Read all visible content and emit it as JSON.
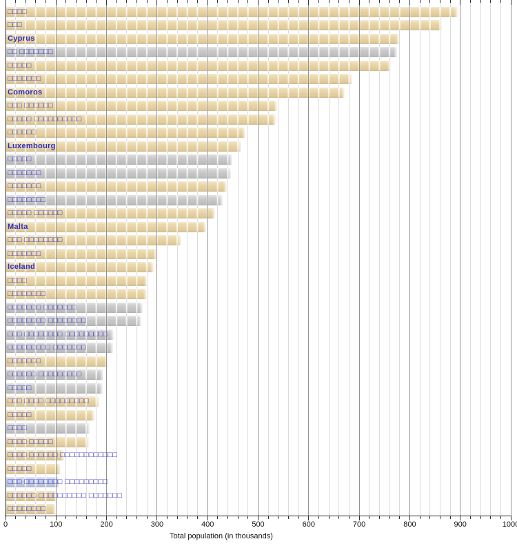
{
  "chart_data": {
    "type": "bar",
    "orientation": "horizontal",
    "xlabel": "Total population (in thousands)",
    "xlim": [
      0,
      1000
    ],
    "x_major_tick_labels": [
      "0",
      "100",
      "200",
      "300",
      "400",
      "500",
      "600",
      "700",
      "800",
      "900",
      "1000"
    ],
    "x_minor_tick_step": 20,
    "grid": "on",
    "palette": {
      "tan": "#e8d3a2",
      "gray": "#c7c7c7",
      "bluegray": "#c2cbe3",
      "label_blue": "#2e2ec0"
    },
    "rows": [
      {
        "label": "□□□□",
        "value": 894,
        "color": "tan"
      },
      {
        "label": "□□□",
        "value": 862,
        "color": "tan"
      },
      {
        "label": "Cyprus",
        "value": 777,
        "color": "tan"
      },
      {
        "label": "□□ □□□□□□□",
        "value": 773,
        "color": "gray"
      },
      {
        "label": "□□□□□",
        "value": 761,
        "color": "tan"
      },
      {
        "label": "□□□□□□□",
        "value": 685,
        "color": "tan"
      },
      {
        "label": "Comoros",
        "value": 670,
        "color": "tan"
      },
      {
        "label": "□□□ □□□□□□",
        "value": 536,
        "color": "tan"
      },
      {
        "label": "□□□□□ □□□□□□□□□□",
        "value": 533,
        "color": "tan"
      },
      {
        "label": "□□□□□□",
        "value": 473,
        "color": "tan"
      },
      {
        "label": "Luxembourg",
        "value": 465,
        "color": "tan"
      },
      {
        "label": "□□□□□",
        "value": 447,
        "color": "gray"
      },
      {
        "label": "□□□□□□□",
        "value": 445,
        "color": "gray"
      },
      {
        "label": "□□□□□□□",
        "value": 436,
        "color": "tan"
      },
      {
        "label": "□□□□□□□□",
        "value": 429,
        "color": "gray"
      },
      {
        "label": "□□□□□ □□□□□□",
        "value": 414,
        "color": "tan"
      },
      {
        "label": "Malta",
        "value": 395,
        "color": "tan"
      },
      {
        "label": "□□□ □□□□□□□□",
        "value": 346,
        "color": "tan"
      },
      {
        "label": "□□□□□□□",
        "value": 297,
        "color": "tan"
      },
      {
        "label": "Iceland",
        "value": 292,
        "color": "tan"
      },
      {
        "label": "□□□□",
        "value": 279,
        "color": "tan"
      },
      {
        "label": "□□□□□□□□",
        "value": 278,
        "color": "tan"
      },
      {
        "label": "□□□□□□□ □□□□□□□",
        "value": 270,
        "color": "gray"
      },
      {
        "label": "□□□□□□□□ □□□□□□□□",
        "value": 267,
        "color": "gray"
      },
      {
        "label": "□□□ □□□□□□□□ □□□□□□□□□",
        "value": 213,
        "color": "gray"
      },
      {
        "label": "□□□□□□□□□ □□□□□□□",
        "value": 212,
        "color": "gray"
      },
      {
        "label": "□□□□□□□",
        "value": 202,
        "color": "tan"
      },
      {
        "label": "□□□□□□ □□□□□□□□□",
        "value": 193,
        "color": "gray"
      },
      {
        "label": "□□□□□",
        "value": 191,
        "color": "gray"
      },
      {
        "label": "□□□ □□□□ □□□□□□□□□",
        "value": 184,
        "color": "tan"
      },
      {
        "label": "□□□□□",
        "value": 175,
        "color": "tan"
      },
      {
        "label": "□□□□",
        "value": 165,
        "color": "gray"
      },
      {
        "label": "□□□□ □□□□□",
        "value": 164,
        "color": "tan"
      },
      {
        "label": "□□□□ □□□□□□ □□□□□□□□□□□□",
        "value": 114,
        "color": "tan"
      },
      {
        "label": "□□□□□",
        "value": 108,
        "color": "tan"
      },
      {
        "label": "□□□ □□□□□□□□ □□□□□□□□□",
        "value": 105,
        "color": "bluegray"
      },
      {
        "label": "□□□□□□ □□□□□□□□□□ □□□□□□□",
        "value": 101,
        "color": "tan"
      },
      {
        "label": "□□□□□□□□",
        "value": 98,
        "color": "tan"
      }
    ]
  }
}
